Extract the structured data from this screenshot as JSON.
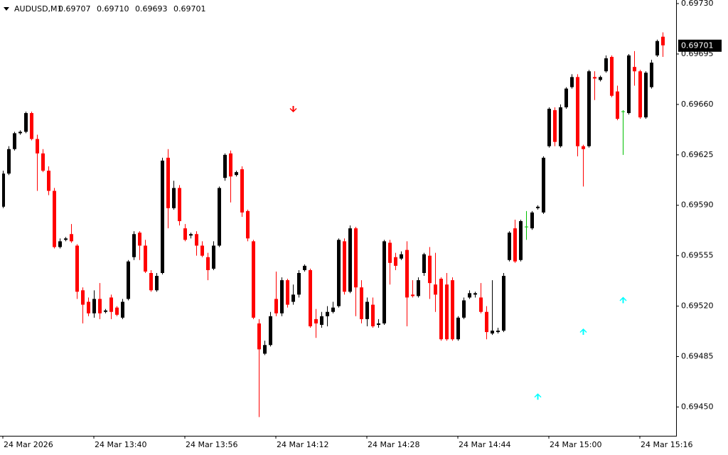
{
  "chart_data": {
    "type": "candlestick",
    "title": "AUDUSD,M1",
    "header_labels": [
      "0.69707",
      "0.69710",
      "0.69693",
      "0.69701"
    ],
    "categories": [
      "24 Mar 2026",
      null,
      null,
      null,
      null,
      null,
      null,
      null,
      null,
      null,
      null,
      null,
      null,
      null,
      null,
      null,
      "24 Mar 13:40",
      null,
      null,
      null,
      null,
      null,
      null,
      null,
      null,
      null,
      null,
      null,
      null,
      null,
      null,
      null,
      "24 Mar 13:56",
      null,
      null,
      null,
      null,
      null,
      null,
      null,
      null,
      null,
      null,
      null,
      null,
      null,
      null,
      null,
      "24 Mar 14:12",
      null,
      null,
      null,
      null,
      null,
      null,
      null,
      null,
      null,
      null,
      null,
      null,
      null,
      null,
      null,
      "24 Mar 14:28",
      null,
      null,
      null,
      null,
      null,
      null,
      null,
      null,
      null,
      null,
      null,
      null,
      null,
      null,
      null,
      "24 Mar 14:44",
      null,
      null,
      null,
      null,
      null,
      null,
      null,
      null,
      null,
      null,
      null,
      null,
      null,
      null,
      null,
      "24 Mar 15:00",
      null,
      null,
      null,
      null,
      null,
      null,
      null,
      null,
      null,
      null,
      null,
      null,
      null,
      null,
      null,
      "24 Mar 15:16",
      null,
      null,
      null,
      null
    ],
    "open": [
      0.69589,
      0.69612,
      0.69629,
      0.6964,
      0.69641,
      0.69654,
      0.69636,
      0.69626,
      0.69614,
      0.696,
      0.69561,
      0.69566,
      0.6957,
      0.69562,
      0.69531,
      0.69523,
      0.69515,
      0.69525,
      0.69516,
      0.69526,
      0.69519,
      0.69512,
      0.69525,
      0.69554,
      0.69571,
      0.69562,
      0.69543,
      0.69531,
      0.69543,
      0.69623,
      0.69588,
      0.69602,
      0.69574,
      0.69569,
      0.6957,
      0.69562,
      0.69554,
      0.69546,
      0.69562,
      0.69609,
      0.69626,
      0.69611,
      0.69615,
      0.69586,
      0.69565,
      0.69508,
      0.69487,
      0.69493,
      0.69525,
      0.69515,
      0.69538,
      0.69523,
      0.69528,
      0.69545,
      0.69545,
      0.69511,
      0.69507,
      0.69513,
      0.69516,
      0.6952,
      0.69565,
      0.6953,
      0.69574,
      0.69533,
      0.69511,
      0.69521,
      0.69507,
      0.69508,
      0.69564,
      0.69554,
      0.69553,
      0.69559,
      0.69528,
      0.69527,
      0.69543,
      0.69555,
      0.69535,
      0.69539,
      0.69535,
      0.69538,
      0.69497,
      0.69512,
      0.69526,
      0.69528,
      0.69526,
      0.69516,
      0.69501,
      0.69502,
      0.69503,
      0.69552,
      0.69574,
      0.69552,
      0.69575,
      0.69574,
      0.69588,
      0.69585,
      0.69631,
      0.69656,
      0.69631,
      0.69658,
      0.69672,
      0.69679,
      0.69631,
      0.69631,
      0.69679,
      0.69677,
      0.69683,
      0.69693,
      0.69669,
      0.69655,
      0.69654,
      0.69686,
      0.69683,
      0.69651,
      0.69672,
      0.69694,
      0.69707
    ],
    "high": [
      0.69614,
      0.69631,
      0.69641,
      0.69642,
      0.69655,
      0.69655,
      0.69639,
      0.69629,
      0.69617,
      0.69602,
      0.69567,
      0.69568,
      0.69577,
      0.69563,
      0.69533,
      0.69526,
      0.69531,
      0.69536,
      0.69518,
      0.69528,
      0.6952,
      0.69525,
      0.69552,
      0.69572,
      0.69572,
      0.69566,
      0.69545,
      0.69543,
      0.69623,
      0.69629,
      0.69607,
      0.69604,
      0.69577,
      0.69571,
      0.69572,
      0.69565,
      0.69557,
      0.69565,
      0.69603,
      0.69626,
      0.69628,
      0.69614,
      0.69617,
      0.69587,
      0.69566,
      0.69511,
      0.69496,
      0.69516,
      0.69544,
      0.6954,
      0.69539,
      0.69535,
      0.69545,
      0.69549,
      0.69546,
      0.69518,
      0.69516,
      0.6952,
      0.69523,
      0.69567,
      0.69567,
      0.69576,
      0.69575,
      0.69538,
      0.69526,
      0.69526,
      0.69511,
      0.69566,
      0.69566,
      0.69557,
      0.69558,
      0.69565,
      0.69538,
      0.6954,
      0.69557,
      0.69561,
      0.69557,
      0.6954,
      0.69543,
      0.6954,
      0.69513,
      0.69526,
      0.69531,
      0.6953,
      0.69536,
      0.6952,
      0.69538,
      0.69505,
      0.69543,
      0.69572,
      0.6958,
      0.6958,
      0.69586,
      0.69586,
      0.6959,
      0.69624,
      0.69658,
      0.69658,
      0.6966,
      0.69672,
      0.69681,
      0.69681,
      0.69632,
      0.69684,
      0.69683,
      0.6968,
      0.69694,
      0.69694,
      0.69673,
      0.69656,
      0.69695,
      0.69697,
      0.69684,
      0.69683,
      0.69691,
      0.69705,
      0.6971
    ],
    "low": [
      0.69588,
      0.69611,
      0.69628,
      0.69639,
      0.6964,
      0.69635,
      0.696,
      0.69613,
      0.69597,
      0.6956,
      0.6956,
      0.69565,
      0.69564,
      0.69525,
      0.69508,
      0.69513,
      0.69512,
      0.69511,
      0.69515,
      0.69511,
      0.69513,
      0.69511,
      0.69524,
      0.69552,
      0.69552,
      0.69543,
      0.6953,
      0.6953,
      0.69542,
      0.69574,
      0.69587,
      0.69576,
      0.69565,
      0.69567,
      0.69555,
      0.69554,
      0.69538,
      0.69545,
      0.69561,
      0.69607,
      0.69592,
      0.6961,
      0.69582,
      0.69565,
      0.69511,
      0.69443,
      0.69486,
      0.69492,
      0.69513,
      0.69513,
      0.69519,
      0.69521,
      0.69526,
      0.69544,
      0.69505,
      0.69498,
      0.69505,
      0.69506,
      0.69515,
      0.69519,
      0.69528,
      0.69529,
      0.69513,
      0.69508,
      0.69506,
      0.69505,
      0.69505,
      0.69507,
      0.69535,
      0.69545,
      0.69552,
      0.69506,
      0.69526,
      0.69526,
      0.69541,
      0.69525,
      0.69516,
      0.69496,
      0.69496,
      0.69496,
      0.69496,
      0.69511,
      0.69525,
      0.69526,
      0.69515,
      0.69497,
      0.695,
      0.69501,
      0.69502,
      0.69551,
      0.6955,
      0.69551,
      0.69566,
      0.69573,
      0.69587,
      0.69584,
      0.6963,
      0.69631,
      0.6963,
      0.69657,
      0.69671,
      0.69624,
      0.69603,
      0.6963,
      0.69663,
      0.69676,
      0.69682,
      0.69665,
      0.69649,
      0.69625,
      0.69653,
      0.69673,
      0.6965,
      0.6965,
      0.69671,
      0.69693,
      0.69693
    ],
    "close": [
      0.69612,
      0.69629,
      0.6964,
      0.69641,
      0.69654,
      0.69636,
      0.69626,
      0.69614,
      0.696,
      0.69561,
      0.69565,
      0.69567,
      0.69565,
      0.6953,
      0.69521,
      0.69515,
      0.69525,
      0.69515,
      0.69517,
      0.69516,
      0.69514,
      0.69523,
      0.69551,
      0.6957,
      0.69562,
      0.69544,
      0.69531,
      0.69541,
      0.69621,
      0.69588,
      0.69602,
      0.69579,
      0.69566,
      0.6957,
      0.69562,
      0.69555,
      0.69545,
      0.69562,
      0.69602,
      0.69625,
      0.6961,
      0.69613,
      0.69585,
      0.69567,
      0.69512,
      0.6949,
      0.69493,
      0.69513,
      0.69515,
      0.69538,
      0.69521,
      0.69528,
      0.69543,
      0.69548,
      0.69506,
      0.69508,
      0.69513,
      0.69516,
      0.69519,
      0.69566,
      0.6953,
      0.69574,
      0.69533,
      0.69511,
      0.69523,
      0.69506,
      0.69508,
      0.69565,
      0.6955,
      0.69548,
      0.69556,
      0.69526,
      0.69527,
      0.69538,
      0.69556,
      0.69536,
      0.69528,
      0.69497,
      0.69497,
      0.69497,
      0.69512,
      0.69524,
      0.69529,
      0.69529,
      0.69516,
      0.69502,
      0.69503,
      0.69503,
      0.69541,
      0.69571,
      0.69551,
      0.69579,
      0.69575,
      0.69585,
      0.69589,
      0.69623,
      0.69657,
      0.69634,
      0.69658,
      0.69671,
      0.69679,
      0.69631,
      0.69629,
      0.69683,
      0.69678,
      0.69679,
      0.69692,
      0.69666,
      0.6965,
      0.69655,
      0.69694,
      0.69683,
      0.69651,
      0.69682,
      0.69689,
      0.69704,
      0.69701
    ],
    "up_color": "#000000",
    "down_color": "#ff0000",
    "doji_color": "#00c000",
    "arrows": [
      {
        "index": 51,
        "price": 0.69656,
        "direction": "down",
        "color": "#ff0000"
      },
      {
        "index": 94,
        "price": 0.69458,
        "direction": "up",
        "color": "#00ffff"
      },
      {
        "index": 102,
        "price": 0.69503,
        "direction": "up",
        "color": "#00ffff"
      },
      {
        "index": 109,
        "price": 0.69525,
        "direction": "up",
        "color": "#00ffff"
      }
    ],
    "last_price": {
      "value": 0.69701,
      "label": "0.69701"
    },
    "ylim": [
      0.6943,
      0.69731
    ],
    "yticks": [
      {
        "value": 0.6973,
        "label": "0.69730"
      },
      0.69695,
      {
        "value": 0.6966,
        "label": "0.69660"
      },
      0.69625,
      {
        "value": 0.6959,
        "label": "0.69590"
      },
      0.69555,
      {
        "value": 0.6952,
        "label": "0.69520"
      },
      0.69485,
      {
        "value": 0.6945,
        "label": "0.69450"
      }
    ],
    "grid": false
  }
}
